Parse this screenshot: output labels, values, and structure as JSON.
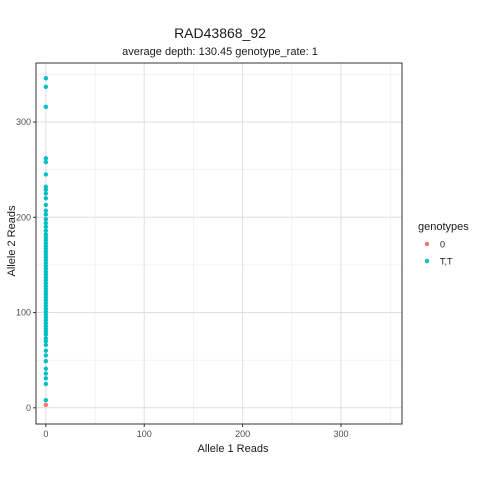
{
  "chart_data": {
    "type": "scatter",
    "title": "RAD43868_92",
    "subtitle": "average depth:  130.45  genotype_rate:  1",
    "xlabel": "Allele 1 Reads",
    "ylabel": "Allele 2 Reads",
    "xlim": [
      -10,
      362
    ],
    "ylim": [
      -17,
      362
    ],
    "x_ticks": [
      0,
      100,
      200,
      300
    ],
    "y_ticks": [
      0,
      100,
      200,
      300
    ],
    "grid": true,
    "legend": {
      "title": "genotypes",
      "position": "right",
      "entries": [
        {
          "label": "0",
          "color": "#F8766D"
        },
        {
          "label": "T,T",
          "color": "#00BFC4"
        }
      ]
    },
    "series": [
      {
        "name": "0",
        "color": "#F8766D",
        "points": [
          [
            0,
            3
          ]
        ]
      },
      {
        "name": "T,T",
        "color": "#00BFC4",
        "points": [
          [
            0,
            346
          ],
          [
            0,
            337
          ],
          [
            0,
            316
          ],
          [
            0,
            262
          ],
          [
            0,
            258
          ],
          [
            0,
            245
          ],
          [
            0,
            232
          ],
          [
            0,
            229
          ],
          [
            0,
            225
          ],
          [
            0,
            220
          ],
          [
            0,
            213
          ],
          [
            0,
            207
          ],
          [
            0,
            203
          ],
          [
            0,
            198
          ],
          [
            0,
            194
          ],
          [
            0,
            190
          ],
          [
            0,
            186
          ],
          [
            0,
            182
          ],
          [
            0,
            179
          ],
          [
            0,
            176
          ],
          [
            0,
            173
          ],
          [
            0,
            170
          ],
          [
            0,
            167
          ],
          [
            0,
            164
          ],
          [
            0,
            161
          ],
          [
            0,
            158
          ],
          [
            0,
            155
          ],
          [
            0,
            152
          ],
          [
            0,
            149
          ],
          [
            0,
            146
          ],
          [
            0,
            143
          ],
          [
            0,
            140
          ],
          [
            0,
            137
          ],
          [
            0,
            134
          ],
          [
            0,
            131
          ],
          [
            0,
            128
          ],
          [
            0,
            125
          ],
          [
            0,
            122
          ],
          [
            0,
            119
          ],
          [
            0,
            116
          ],
          [
            0,
            113
          ],
          [
            0,
            110
          ],
          [
            0,
            107
          ],
          [
            0,
            104
          ],
          [
            0,
            101
          ],
          [
            0,
            98
          ],
          [
            0,
            95
          ],
          [
            0,
            92
          ],
          [
            0,
            89
          ],
          [
            0,
            86
          ],
          [
            0,
            83
          ],
          [
            0,
            80
          ],
          [
            0,
            77
          ],
          [
            0,
            73
          ],
          [
            0,
            70
          ],
          [
            0,
            66
          ],
          [
            0,
            60
          ],
          [
            0,
            55
          ],
          [
            0,
            49
          ],
          [
            0,
            41
          ],
          [
            0,
            36
          ],
          [
            0,
            31
          ],
          [
            0,
            25
          ],
          [
            0,
            8
          ]
        ]
      }
    ]
  }
}
